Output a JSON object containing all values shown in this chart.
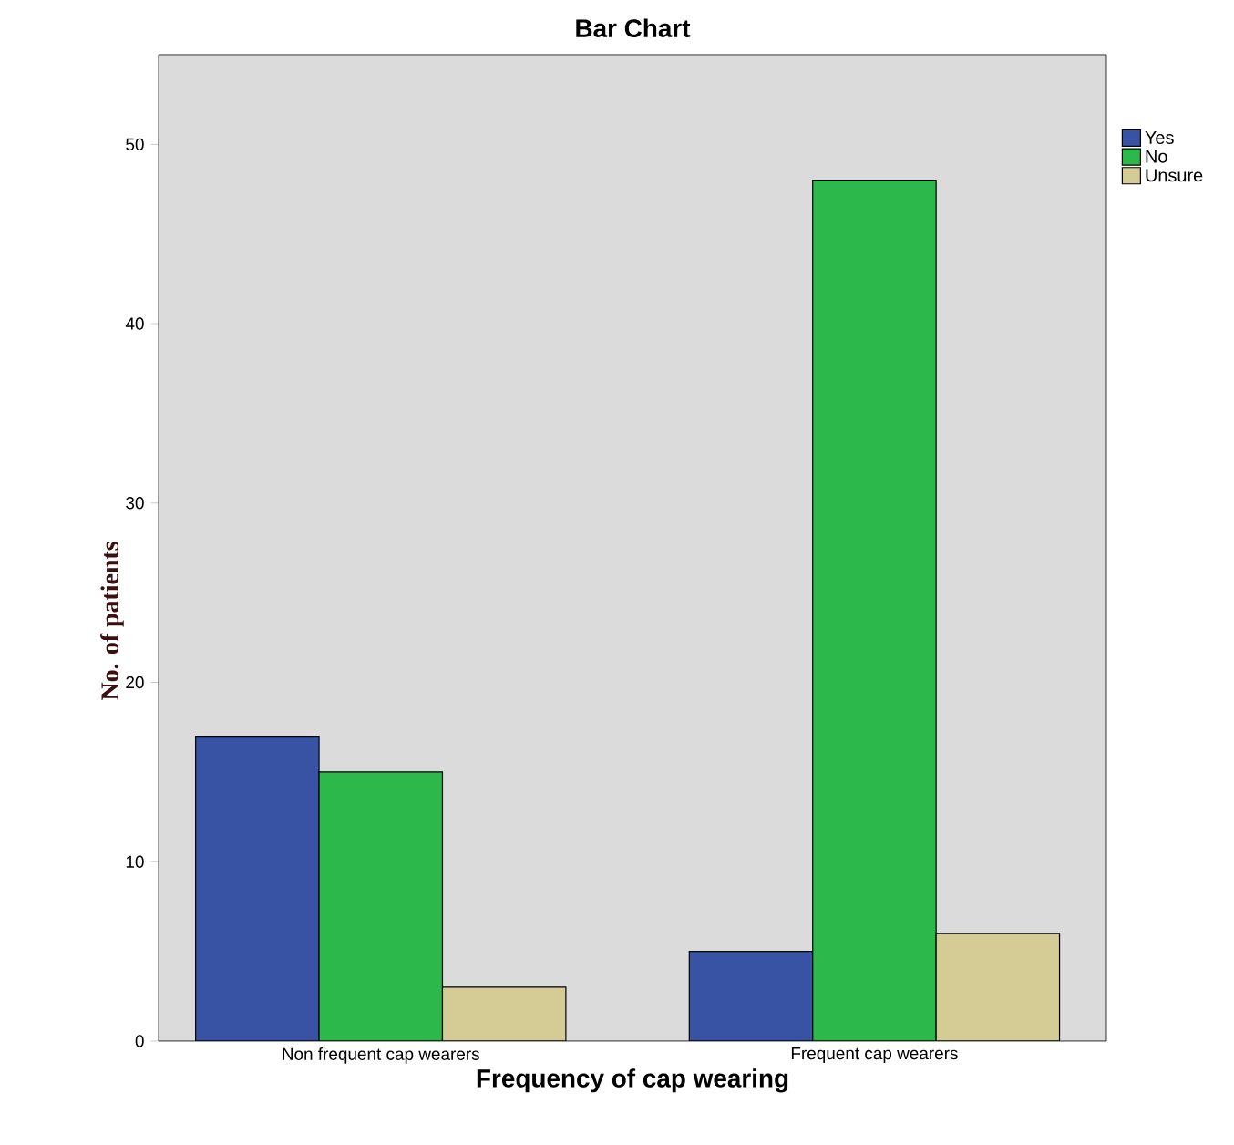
{
  "chart_data": {
    "type": "bar",
    "title": "Bar Chart",
    "xlabel": "Frequency of cap wearing",
    "ylabel": "No. of patients",
    "categories": [
      "Non frequent cap wearers",
      "Frequent cap wearers"
    ],
    "series": [
      {
        "name": "Yes",
        "color": "#3953a4",
        "values": [
          17,
          5
        ]
      },
      {
        "name": "No",
        "color": "#2db84b",
        "values": [
          15,
          48
        ]
      },
      {
        "name": "Unsure",
        "color": "#d4cc94",
        "values": [
          3,
          6
        ]
      }
    ],
    "ylim": [
      0,
      55
    ],
    "yticks": [
      0,
      10,
      20,
      30,
      40,
      50
    ],
    "grid": false,
    "legend": "top right"
  }
}
